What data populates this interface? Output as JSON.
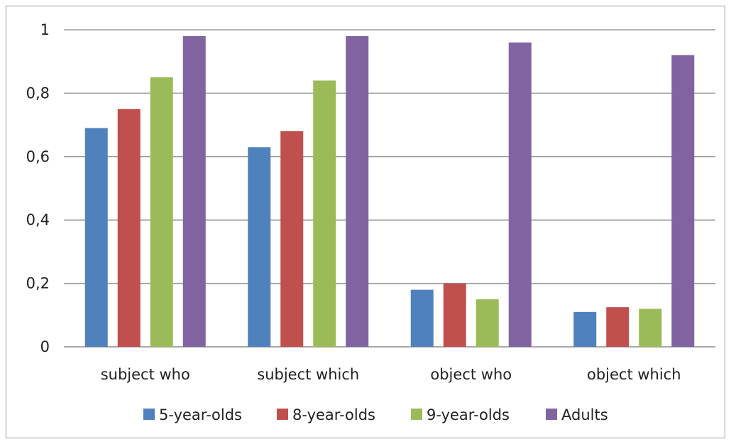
{
  "chart_data": {
    "type": "bar",
    "categories": [
      "subject who",
      "subject which",
      "object who",
      "object which"
    ],
    "series": [
      {
        "name": "5-year-olds",
        "color": "#4f81bd",
        "values": [
          0.69,
          0.63,
          0.18,
          0.11
        ]
      },
      {
        "name": "8-year-olds",
        "color": "#c0504d",
        "values": [
          0.75,
          0.68,
          0.2,
          0.125
        ]
      },
      {
        "name": "9-year-olds",
        "color": "#9bbb59",
        "values": [
          0.85,
          0.84,
          0.15,
          0.12
        ]
      },
      {
        "name": "Adults",
        "color": "#8064a2",
        "values": [
          0.98,
          0.98,
          0.96,
          0.92
        ]
      }
    ],
    "yticks": [
      "0",
      "0,2",
      "0,4",
      "0,6",
      "0,8",
      "1"
    ],
    "ylim": [
      0,
      1
    ],
    "grid": true,
    "legend_position": "bottom"
  }
}
